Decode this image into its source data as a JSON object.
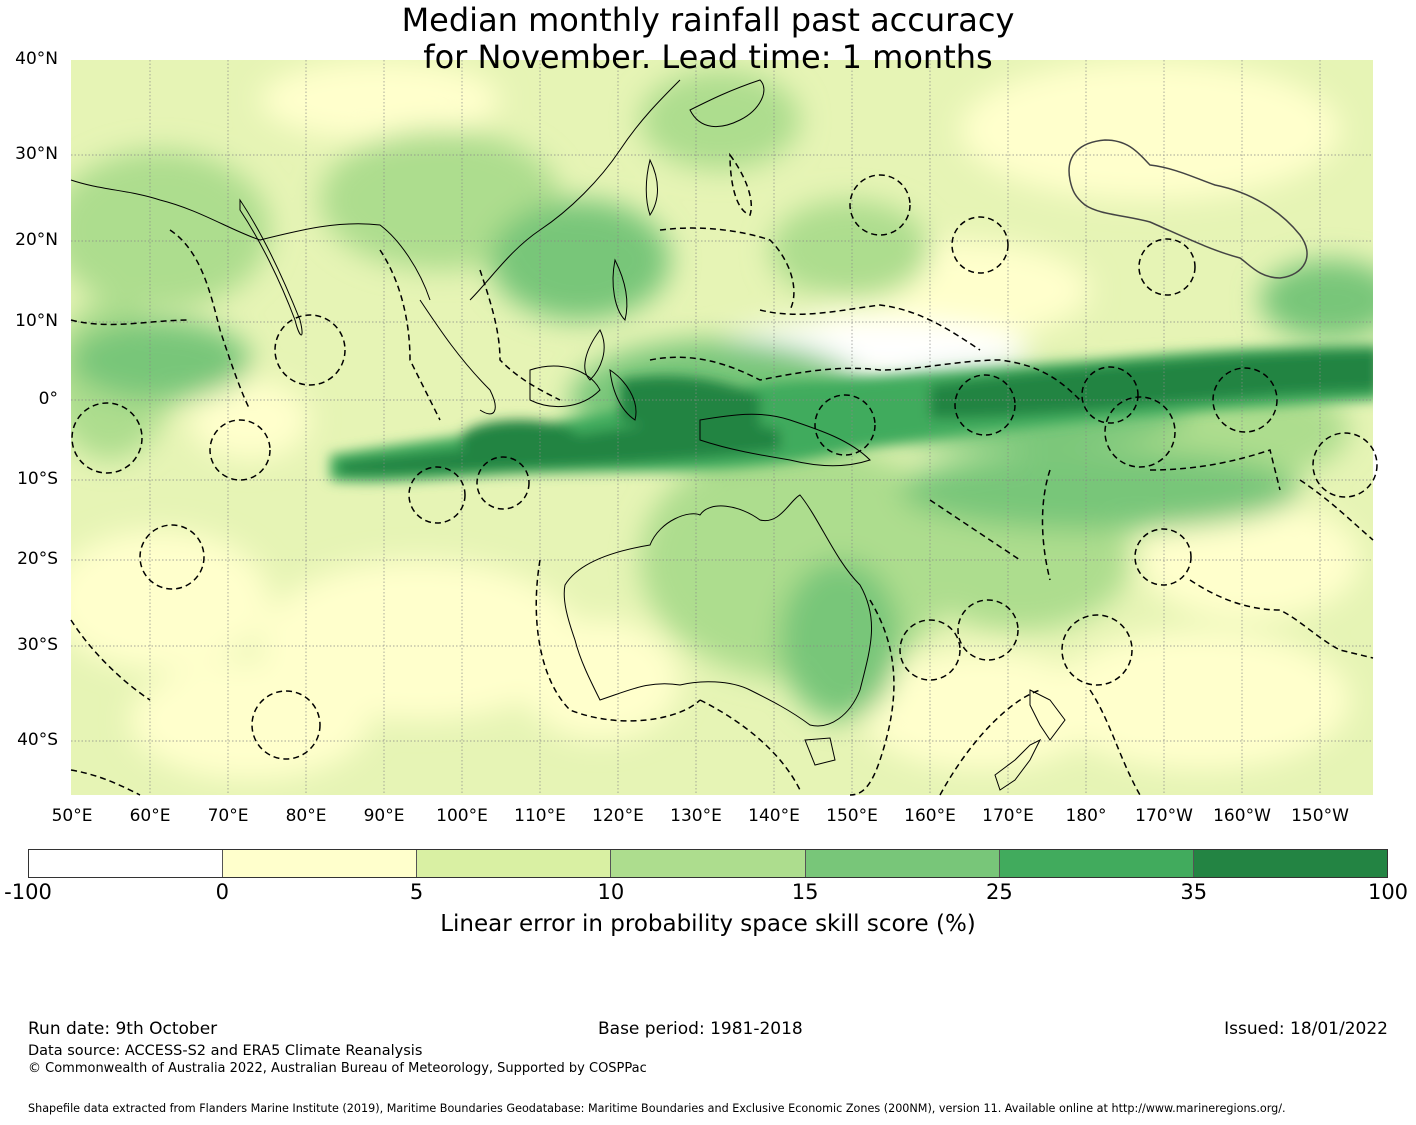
{
  "title_line1": "Median monthly rainfall past accuracy",
  "title_line2": "for November. Lead time: 1 months",
  "lat_labels": [
    "40°N",
    "30°N",
    "20°N",
    "10°N",
    "0°",
    "10°S",
    "20°S",
    "30°S",
    "40°S"
  ],
  "lon_labels": [
    "50°E",
    "60°E",
    "70°E",
    "80°E",
    "90°E",
    "100°E",
    "110°E",
    "120°E",
    "130°E",
    "140°E",
    "150°E",
    "160°E",
    "170°E",
    "180°",
    "170°W",
    "160°W",
    "150°W"
  ],
  "colorbar": {
    "ticks": [
      "-100",
      "0",
      "5",
      "10",
      "15",
      "25",
      "35",
      "100"
    ],
    "colors": [
      "#ffffff",
      "#ffffcc",
      "#d9f0a3",
      "#addd8e",
      "#78c679",
      "#41ab5d",
      "#238443"
    ],
    "label": "Linear error in probability space skill score (%)"
  },
  "footer": {
    "run_date": "Run date: 9th October",
    "base_period": "Base period: 1981-2018",
    "issued": "Issued: 18/01/2022",
    "data_source": "Data source: ACCESS-S2 and ERA5 Climate Reanalysis",
    "copyright": "© Commonwealth of Australia 2022, Australian Bureau of Meteorology, Supported by COSPPac",
    "shapefile": "Shapefile data extracted from Flanders Marine Institute (2019), Maritime Boundaries Geodatabase: Maritime Boundaries and Exclusive Economic Zones (200NM), version 11. Available online at http://www.marineregions.org/."
  }
}
